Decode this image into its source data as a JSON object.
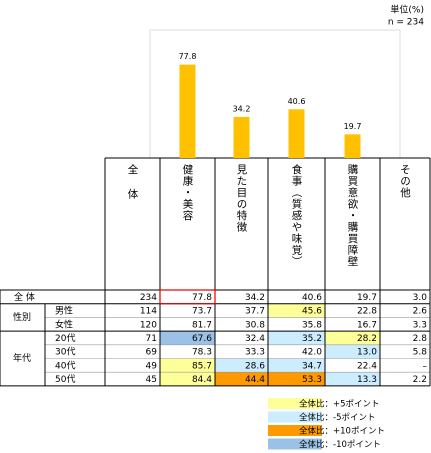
{
  "header": {
    "unit": "単位(%)",
    "n_label": "n = 234"
  },
  "chart_data": {
    "type": "bar",
    "values": [
      77.8,
      34.2,
      40.6,
      19.7
    ],
    "color": "#FFC000"
  },
  "table": {
    "columns": [
      "全体",
      "健康・美容",
      "見た目の特徴",
      "食事（質感や味覚）",
      "購買意欲・購買障壁",
      "その他"
    ],
    "rows": [
      {
        "label": "全 体",
        "values": [
          234,
          77.8,
          34.2,
          40.6,
          19.7,
          3.0
        ],
        "value_labels": [
          "234",
          "77.8",
          "34.2",
          "40.6",
          "19.7",
          "3.0"
        ],
        "fills": [
          null,
          null,
          null,
          null,
          null,
          null
        ]
      },
      {
        "group": "性別",
        "label": "男性",
        "values": [
          114,
          73.7,
          37.7,
          45.6,
          22.8,
          2.6
        ],
        "value_labels": [
          "114",
          "73.7",
          "37.7",
          "45.6",
          "22.8",
          "2.6"
        ],
        "fills": [
          null,
          null,
          null,
          "#FFFF99",
          null,
          null
        ]
      },
      {
        "label": "女性",
        "values": [
          120,
          81.7,
          30.8,
          35.8,
          16.7,
          3.3
        ],
        "value_labels": [
          "120",
          "81.7",
          "30.8",
          "35.8",
          "16.7",
          "3.3"
        ],
        "fills": [
          null,
          null,
          null,
          null,
          null,
          null
        ]
      },
      {
        "group": "年代",
        "label": "20代",
        "values": [
          71,
          67.6,
          32.4,
          35.2,
          28.2,
          2.8
        ],
        "value_labels": [
          "71",
          "67.6",
          "32.4",
          "35.2",
          "28.2",
          "2.8"
        ],
        "fills": [
          null,
          "#9BC2E6",
          null,
          "#CCECFF",
          "#FFFF99",
          null
        ]
      },
      {
        "label": "30代",
        "values": [
          69,
          78.3,
          33.3,
          42.0,
          13.0,
          5.8
        ],
        "value_labels": [
          "69",
          "78.3",
          "33.3",
          "42.0",
          "13.0",
          "5.8"
        ],
        "fills": [
          null,
          null,
          null,
          null,
          "#CCECFF",
          null
        ]
      },
      {
        "label": "40代",
        "values": [
          49,
          85.7,
          28.6,
          34.7,
          22.4,
          null
        ],
        "value_labels": [
          "49",
          "85.7",
          "28.6",
          "34.7",
          "22.4",
          "–"
        ],
        "fills": [
          null,
          "#FFFF99",
          "#CCECFF",
          "#CCECFF",
          null,
          null
        ]
      },
      {
        "label": "50代",
        "values": [
          45,
          84.4,
          44.4,
          53.3,
          13.3,
          2.2
        ],
        "value_labels": [
          "45",
          "84.4",
          "44.4",
          "53.3",
          "13.3",
          "2.2"
        ],
        "fills": [
          null,
          "#FFFF99",
          "#FF9900",
          "#FF9900",
          "#CCECFF",
          null
        ]
      }
    ]
  },
  "legend": [
    {
      "label": "全体比：+5ポイント",
      "color": "#FFFF99"
    },
    {
      "label": "全体比：-5ポイント",
      "color": "#CCECFF"
    },
    {
      "label": "全体比：+10ポイント",
      "color": "#FF9900"
    },
    {
      "label": "全体比：-10ポイント",
      "color": "#9BC2E6"
    }
  ]
}
